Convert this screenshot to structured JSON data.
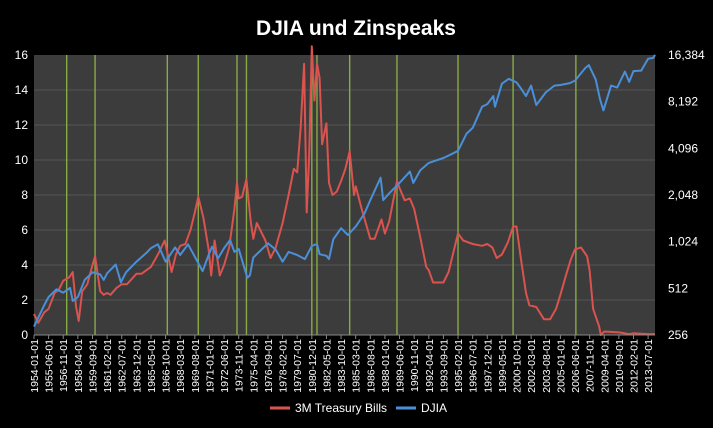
{
  "chart_data": {
    "type": "line",
    "title": "DJIA und Zinspeaks",
    "x_range": [
      "1954-01-01",
      "2014-03-01"
    ],
    "left_axis": {
      "min": 0,
      "max": 16,
      "ticks": [
        "0",
        "2",
        "4",
        "6",
        "8",
        "10",
        "12",
        "14",
        "16"
      ]
    },
    "right_axis": {
      "scale": "log2",
      "min": 256,
      "max": 16384,
      "ticks": [
        "256",
        "512",
        "1,024",
        "2,048",
        "4,096",
        "8,192",
        "16,384"
      ],
      "tick_values": [
        256,
        512,
        1024,
        2048,
        4096,
        8192,
        16384
      ]
    },
    "x_ticks": [
      "1954-01-01",
      "1955-06-01",
      "1956-11-01",
      "1958-04-01",
      "1959-09-01",
      "1961-02-01",
      "1962-07-01",
      "1963-12-01",
      "1965-05-01",
      "1966-10-01",
      "1968-03-01",
      "1969-08-01",
      "1971-01-01",
      "1972-06-01",
      "1973-11-01",
      "1975-04-01",
      "1976-09-01",
      "1978-02-01",
      "1979-07-01",
      "1980-12-01",
      "1982-05-01",
      "1983-10-01",
      "1985-03-01",
      "1986-08-01",
      "1988-01-01",
      "1989-06-01",
      "1990-11-01",
      "1992-04-01",
      "1993-09-01",
      "1995-02-01",
      "1996-07-01",
      "1997-12-01",
      "1999-05-01",
      "2000-10-01",
      "2002-03-01",
      "2003-08-01",
      "2005-01-01",
      "2006-06-01",
      "2007-11-01",
      "2009-04-01",
      "2010-09-01",
      "2012-02-01",
      "2013-07-01"
    ],
    "peak_lines": [
      "1957-03-01",
      "1959-12-01",
      "1966-12-01",
      "1969-12-01",
      "1973-09-01",
      "1974-08-01",
      "1980-12-01",
      "1981-06-01",
      "1984-08-01",
      "1989-03-01",
      "1995-02-01",
      "2000-06-01",
      "2006-07-01"
    ],
    "legend": {
      "position": "bottom",
      "entries": [
        "3M Treasury Bills",
        "DJIA"
      ]
    },
    "grid": true,
    "colors": {
      "background": "#000000",
      "plot_area": "#3c3c3c",
      "tbill": "#d9534f",
      "djia": "#4a8fd8",
      "peak_line": "#88aa44",
      "text": "#ffffff"
    },
    "series": [
      {
        "name": "3M Treasury Bills",
        "axis": "left",
        "points": [
          [
            "1954-01-01",
            1.2
          ],
          [
            "1954-06-01",
            0.7
          ],
          [
            "1955-01-01",
            1.3
          ],
          [
            "1955-06-01",
            1.5
          ],
          [
            "1956-01-01",
            2.4
          ],
          [
            "1956-06-01",
            2.6
          ],
          [
            "1956-11-01",
            3.1
          ],
          [
            "1957-06-01",
            3.3
          ],
          [
            "1957-10-01",
            3.6
          ],
          [
            "1958-02-01",
            1.6
          ],
          [
            "1958-05-01",
            0.8
          ],
          [
            "1958-09-01",
            2.5
          ],
          [
            "1959-03-01",
            2.9
          ],
          [
            "1959-09-01",
            4.0
          ],
          [
            "1959-12-01",
            4.5
          ],
          [
            "1960-06-01",
            2.5
          ],
          [
            "1960-10-01",
            2.3
          ],
          [
            "1961-02-01",
            2.4
          ],
          [
            "1961-06-01",
            2.3
          ],
          [
            "1962-01-01",
            2.7
          ],
          [
            "1962-07-01",
            2.9
          ],
          [
            "1963-01-01",
            2.9
          ],
          [
            "1963-12-01",
            3.5
          ],
          [
            "1964-06-01",
            3.5
          ],
          [
            "1965-05-01",
            3.9
          ],
          [
            "1966-01-01",
            4.6
          ],
          [
            "1966-09-01",
            5.4
          ],
          [
            "1967-05-01",
            3.6
          ],
          [
            "1967-10-01",
            4.6
          ],
          [
            "1968-03-01",
            5.1
          ],
          [
            "1968-09-01",
            5.2
          ],
          [
            "1969-03-01",
            6.0
          ],
          [
            "1969-08-01",
            7.0
          ],
          [
            "1969-12-01",
            7.9
          ],
          [
            "1970-06-01",
            6.7
          ],
          [
            "1970-12-01",
            4.9
          ],
          [
            "1971-03-01",
            3.4
          ],
          [
            "1971-07-01",
            5.4
          ],
          [
            "1972-01-01",
            3.4
          ],
          [
            "1972-06-01",
            4.0
          ],
          [
            "1972-12-01",
            5.0
          ],
          [
            "1973-06-01",
            7.2
          ],
          [
            "1973-09-01",
            8.7
          ],
          [
            "1973-11-01",
            7.8
          ],
          [
            "1974-03-01",
            7.9
          ],
          [
            "1974-08-01",
            8.9
          ],
          [
            "1975-01-01",
            6.5
          ],
          [
            "1975-04-01",
            5.5
          ],
          [
            "1975-08-01",
            6.4
          ],
          [
            "1976-06-01",
            5.4
          ],
          [
            "1976-12-01",
            4.4
          ],
          [
            "1977-06-01",
            5.0
          ],
          [
            "1978-02-01",
            6.4
          ],
          [
            "1978-09-01",
            8.0
          ],
          [
            "1979-03-01",
            9.5
          ],
          [
            "1979-07-01",
            9.3
          ],
          [
            "1979-11-01",
            11.8
          ],
          [
            "1980-03-01",
            15.5
          ],
          [
            "1980-06-01",
            7.0
          ],
          [
            "1980-09-01",
            10.3
          ],
          [
            "1980-12-01",
            16.5
          ],
          [
            "1981-03-01",
            13.4
          ],
          [
            "1981-06-01",
            15.5
          ],
          [
            "1981-09-01",
            14.7
          ],
          [
            "1981-12-01",
            10.9
          ],
          [
            "1982-05-01",
            12.1
          ],
          [
            "1982-08-01",
            8.7
          ],
          [
            "1982-12-01",
            8.0
          ],
          [
            "1983-05-01",
            8.2
          ],
          [
            "1983-10-01",
            8.8
          ],
          [
            "1984-03-01",
            9.5
          ],
          [
            "1984-08-01",
            10.5
          ],
          [
            "1985-01-01",
            8.0
          ],
          [
            "1985-03-01",
            8.5
          ],
          [
            "1985-10-01",
            7.2
          ],
          [
            "1986-08-01",
            5.5
          ],
          [
            "1987-01-01",
            5.5
          ],
          [
            "1987-09-01",
            6.6
          ],
          [
            "1988-01-01",
            5.8
          ],
          [
            "1988-06-01",
            6.5
          ],
          [
            "1989-03-01",
            8.8
          ],
          [
            "1989-06-01",
            8.4
          ],
          [
            "1989-12-01",
            7.7
          ],
          [
            "1990-06-01",
            7.8
          ],
          [
            "1990-11-01",
            7.2
          ],
          [
            "1991-06-01",
            5.6
          ],
          [
            "1992-01-01",
            3.9
          ],
          [
            "1992-04-01",
            3.7
          ],
          [
            "1992-09-01",
            3.0
          ],
          [
            "1993-01-01",
            3.0
          ],
          [
            "1993-09-01",
            3.0
          ],
          [
            "1994-03-01",
            3.6
          ],
          [
            "1994-09-01",
            4.8
          ],
          [
            "1995-02-01",
            5.8
          ],
          [
            "1995-08-01",
            5.4
          ],
          [
            "1996-07-01",
            5.2
          ],
          [
            "1997-06-01",
            5.1
          ],
          [
            "1997-12-01",
            5.2
          ],
          [
            "1998-06-01",
            5.0
          ],
          [
            "1998-11-01",
            4.4
          ],
          [
            "1999-05-01",
            4.6
          ],
          [
            "1999-12-01",
            5.3
          ],
          [
            "2000-06-01",
            6.2
          ],
          [
            "2000-10-01",
            6.2
          ],
          [
            "2001-03-01",
            4.4
          ],
          [
            "2001-09-01",
            2.4
          ],
          [
            "2002-01-01",
            1.7
          ],
          [
            "2002-09-01",
            1.6
          ],
          [
            "2003-06-01",
            0.9
          ],
          [
            "2004-01-01",
            0.9
          ],
          [
            "2004-08-01",
            1.5
          ],
          [
            "2005-01-01",
            2.3
          ],
          [
            "2005-08-01",
            3.5
          ],
          [
            "2006-01-01",
            4.3
          ],
          [
            "2006-06-01",
            4.9
          ],
          [
            "2007-01-01",
            5.0
          ],
          [
            "2007-08-01",
            4.5
          ],
          [
            "2007-11-01",
            3.7
          ],
          [
            "2008-03-01",
            1.5
          ],
          [
            "2008-10-01",
            0.5
          ],
          [
            "2008-12-01",
            0.0
          ],
          [
            "2009-04-01",
            0.2
          ],
          [
            "2010-09-01",
            0.15
          ],
          [
            "2011-09-01",
            0.05
          ],
          [
            "2012-02-01",
            0.1
          ],
          [
            "2013-07-01",
            0.05
          ],
          [
            "2014-03-01",
            0.05
          ]
        ]
      },
      {
        "name": "DJIA",
        "axis": "right",
        "points": [
          [
            "1954-01-01",
            290
          ],
          [
            "1955-01-01",
            400
          ],
          [
            "1955-06-01",
            450
          ],
          [
            "1956-03-01",
            505
          ],
          [
            "1956-11-01",
            480
          ],
          [
            "1957-07-01",
            515
          ],
          [
            "1957-10-01",
            425
          ],
          [
            "1958-04-01",
            450
          ],
          [
            "1958-12-01",
            580
          ],
          [
            "1959-09-01",
            650
          ],
          [
            "1960-06-01",
            630
          ],
          [
            "1960-10-01",
            580
          ],
          [
            "1961-02-01",
            640
          ],
          [
            "1961-12-01",
            730
          ],
          [
            "1962-06-01",
            560
          ],
          [
            "1962-12-01",
            650
          ],
          [
            "1963-12-01",
            760
          ],
          [
            "1964-12-01",
            870
          ],
          [
            "1965-05-01",
            930
          ],
          [
            "1966-01-01",
            985
          ],
          [
            "1966-10-01",
            760
          ],
          [
            "1967-09-01",
            940
          ],
          [
            "1968-03-01",
            840
          ],
          [
            "1968-12-01",
            985
          ],
          [
            "1969-08-01",
            820
          ],
          [
            "1970-05-01",
            660
          ],
          [
            "1970-12-01",
            840
          ],
          [
            "1971-04-01",
            950
          ],
          [
            "1971-11-01",
            800
          ],
          [
            "1972-06-01",
            930
          ],
          [
            "1973-01-01",
            1050
          ],
          [
            "1973-06-01",
            880
          ],
          [
            "1973-11-01",
            920
          ],
          [
            "1974-09-01",
            600
          ],
          [
            "1974-12-01",
            620
          ],
          [
            "1975-04-01",
            810
          ],
          [
            "1976-09-01",
            1000
          ],
          [
            "1977-06-01",
            910
          ],
          [
            "1978-02-01",
            760
          ],
          [
            "1978-09-01",
            880
          ],
          [
            "1979-07-01",
            840
          ],
          [
            "1980-04-01",
            790
          ],
          [
            "1980-12-01",
            960
          ],
          [
            "1981-06-01",
            990
          ],
          [
            "1981-09-01",
            850
          ],
          [
            "1982-05-01",
            830
          ],
          [
            "1982-08-01",
            790
          ],
          [
            "1983-01-01",
            1060
          ],
          [
            "1983-10-01",
            1250
          ],
          [
            "1984-06-01",
            1130
          ],
          [
            "1985-03-01",
            1280
          ],
          [
            "1986-01-01",
            1550
          ],
          [
            "1986-08-01",
            1900
          ],
          [
            "1987-08-01",
            2650
          ],
          [
            "1987-11-01",
            1900
          ],
          [
            "1988-06-01",
            2100
          ],
          [
            "1989-06-01",
            2450
          ],
          [
            "1990-06-01",
            2900
          ],
          [
            "1990-10-01",
            2450
          ],
          [
            "1991-06-01",
            2950
          ],
          [
            "1992-04-01",
            3300
          ],
          [
            "1993-09-01",
            3550
          ],
          [
            "1994-06-01",
            3750
          ],
          [
            "1995-02-01",
            3950
          ],
          [
            "1995-12-01",
            5100
          ],
          [
            "1996-07-01",
            5550
          ],
          [
            "1997-06-01",
            7600
          ],
          [
            "1997-12-01",
            7900
          ],
          [
            "1998-07-01",
            8900
          ],
          [
            "1998-09-01",
            7600
          ],
          [
            "1999-05-01",
            10700
          ],
          [
            "2000-01-01",
            11500
          ],
          [
            "2000-10-01",
            10900
          ],
          [
            "2001-03-01",
            10000
          ],
          [
            "2001-09-01",
            8900
          ],
          [
            "2002-03-01",
            10400
          ],
          [
            "2002-09-01",
            7800
          ],
          [
            "2003-08-01",
            9400
          ],
          [
            "2004-06-01",
            10400
          ],
          [
            "2005-01-01",
            10500
          ],
          [
            "2005-12-01",
            10800
          ],
          [
            "2006-06-01",
            11200
          ],
          [
            "2007-06-01",
            13500
          ],
          [
            "2007-10-01",
            14100
          ],
          [
            "2008-06-01",
            11400
          ],
          [
            "2008-11-01",
            8500
          ],
          [
            "2009-03-01",
            7200
          ],
          [
            "2009-12-01",
            10400
          ],
          [
            "2010-07-01",
            10100
          ],
          [
            "2011-04-01",
            12800
          ],
          [
            "2011-09-01",
            11000
          ],
          [
            "2012-02-01",
            12900
          ],
          [
            "2012-11-01",
            13000
          ],
          [
            "2013-07-01",
            15500
          ],
          [
            "2014-01-01",
            15700
          ],
          [
            "2014-03-01",
            16400
          ]
        ]
      }
    ]
  }
}
